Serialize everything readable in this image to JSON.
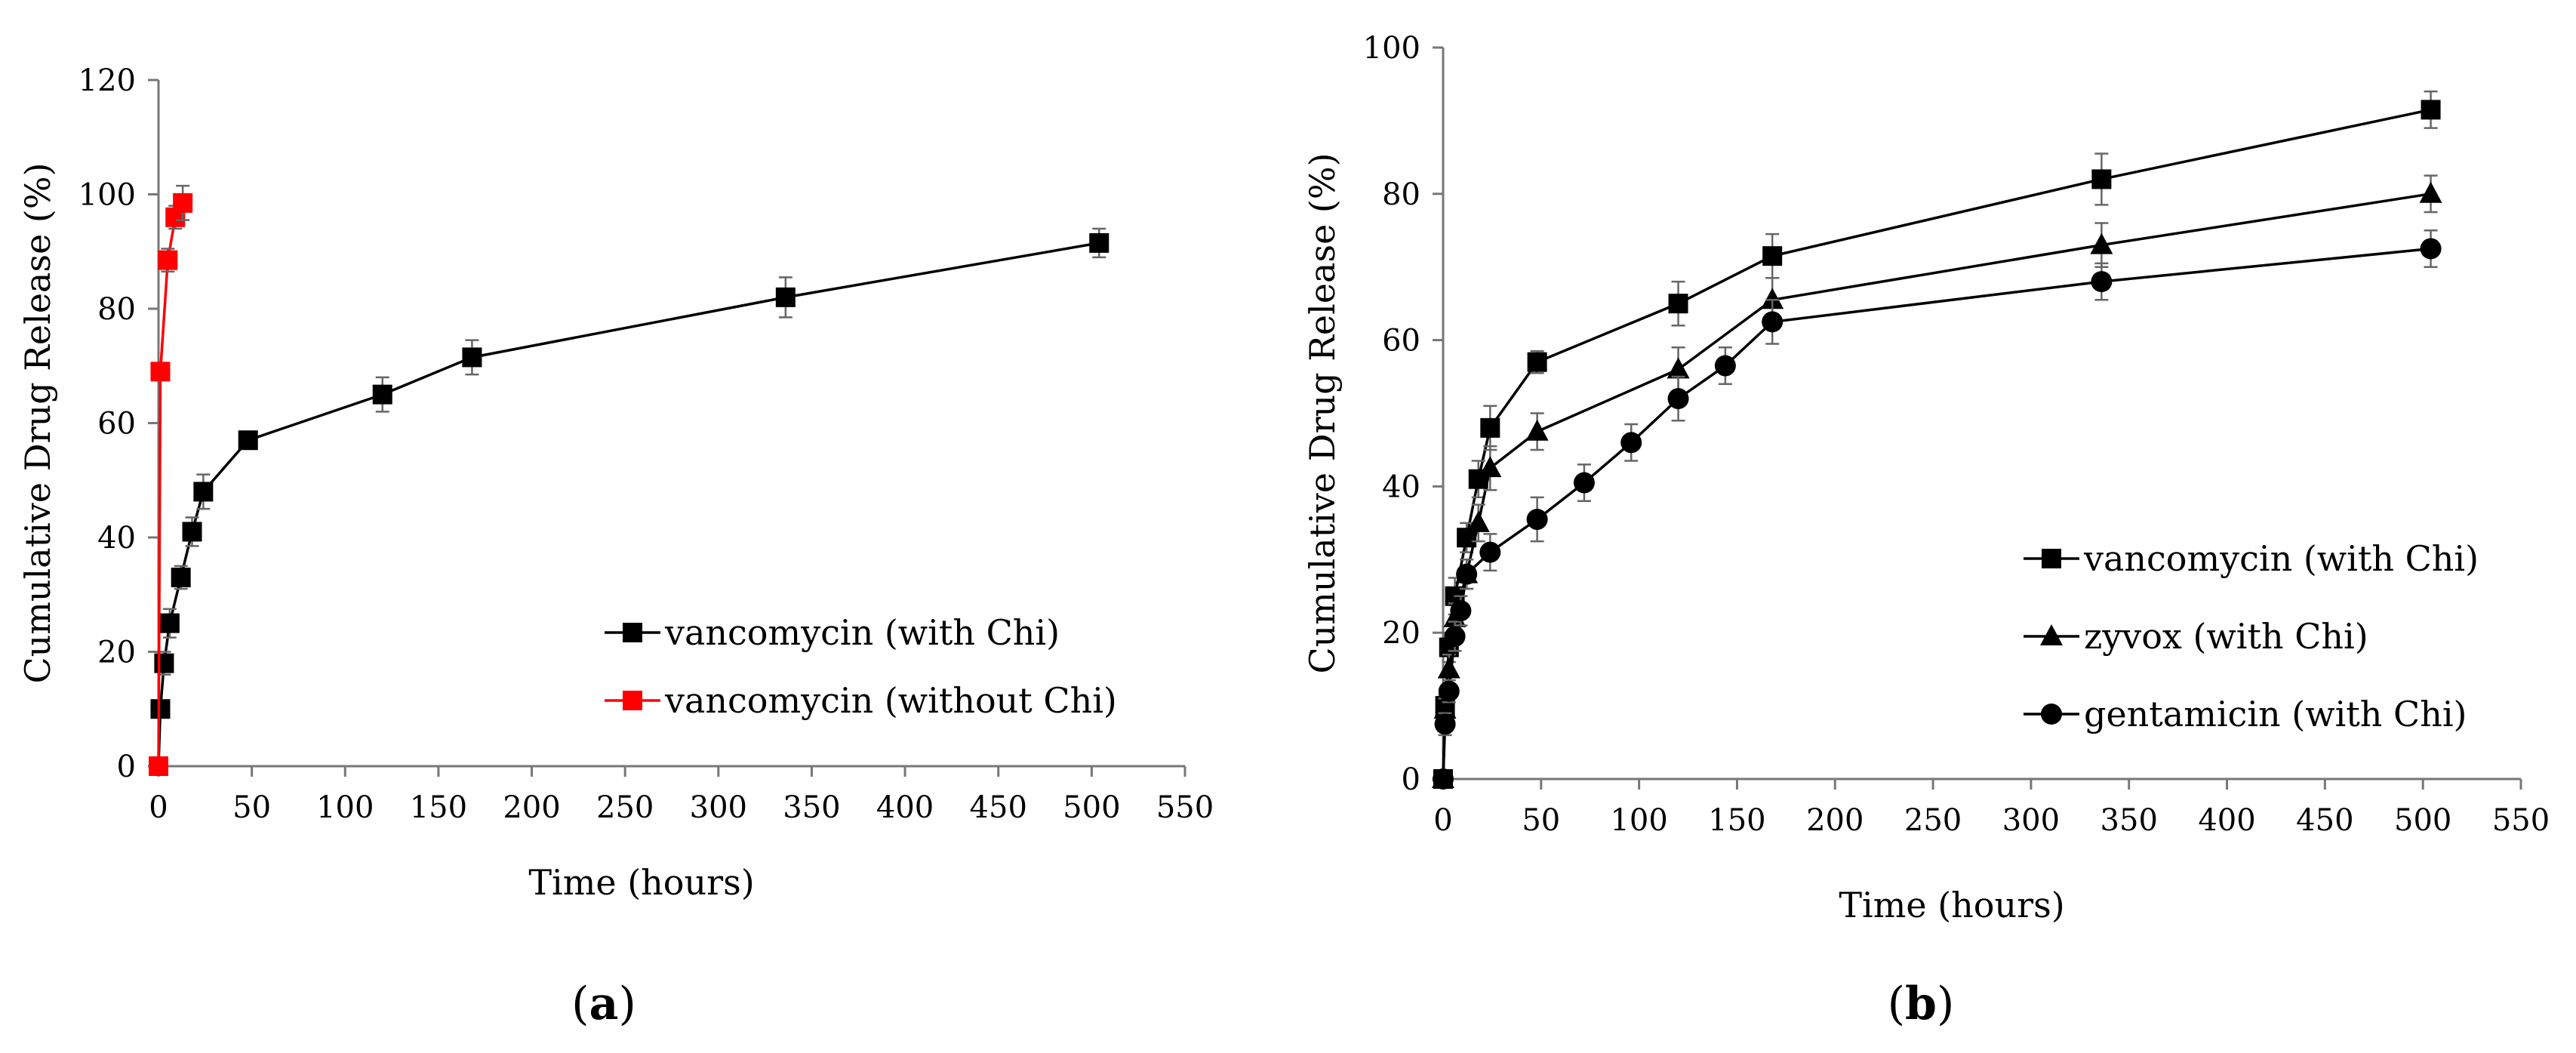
{
  "chart_data": [
    {
      "type": "line",
      "panel_label": "a",
      "xlabel": "Time (hours)",
      "ylabel": "Cumulative Drug Release (%)",
      "xlim": [
        0,
        550
      ],
      "ylim": [
        0,
        120
      ],
      "xticks": [
        0,
        50,
        100,
        150,
        200,
        250,
        300,
        350,
        400,
        450,
        500,
        550
      ],
      "yticks": [
        0,
        20,
        40,
        60,
        80,
        100,
        120
      ],
      "grid": false,
      "legend_position": "center-right",
      "series": [
        {
          "name": "vancomycin (with Chi)",
          "color": "#000000",
          "marker": "square",
          "x": [
            0,
            1,
            3,
            6,
            12,
            18,
            24,
            48,
            120,
            168,
            336,
            504
          ],
          "y": [
            0,
            10,
            18,
            25,
            33,
            41,
            48,
            57,
            65,
            71.5,
            82,
            91.5
          ],
          "error": [
            0,
            1.5,
            2,
            2.5,
            2,
            2.5,
            3,
            1.5,
            3,
            3,
            3.5,
            2.5
          ]
        },
        {
          "name": "vancomycin (without Chi)",
          "color": "#ff0000",
          "marker": "square",
          "x": [
            0,
            1,
            5,
            9,
            13
          ],
          "y": [
            0,
            69,
            88.5,
            96,
            98.5
          ],
          "error": [
            0,
            1.5,
            2,
            2,
            3
          ]
        }
      ]
    },
    {
      "type": "line",
      "panel_label": "b",
      "xlabel": "Time (hours)",
      "ylabel": "Cumulative Drug Release (%)",
      "xlim": [
        0,
        550
      ],
      "ylim": [
        0,
        100
      ],
      "xticks": [
        0,
        50,
        100,
        150,
        200,
        250,
        300,
        350,
        400,
        450,
        500,
        550
      ],
      "yticks": [
        0,
        20,
        40,
        60,
        80,
        100
      ],
      "grid": false,
      "legend_position": "bottom-right",
      "series": [
        {
          "name": "vancomycin (with Chi)",
          "color": "#000000",
          "marker": "square",
          "x": [
            0,
            1,
            3,
            6,
            12,
            18,
            24,
            48,
            120,
            168,
            336,
            504
          ],
          "y": [
            0,
            10,
            18,
            25,
            33,
            41,
            48,
            57,
            65,
            71.5,
            82,
            91.5
          ],
          "error": [
            0,
            1.5,
            2,
            2.5,
            2,
            2.5,
            3,
            1.5,
            3,
            3,
            3.5,
            2.5
          ]
        },
        {
          "name": "zyvox (with Chi)",
          "color": "#000000",
          "marker": "triangle",
          "x": [
            0,
            1,
            3,
            6,
            12,
            18,
            24,
            48,
            120,
            168,
            336,
            504
          ],
          "y": [
            0,
            9.5,
            15,
            22,
            28,
            35,
            42.5,
            47.5,
            56,
            65.5,
            73,
            80
          ],
          "error": [
            0,
            1.5,
            2,
            2,
            2,
            2.5,
            3,
            2.5,
            3,
            3,
            3,
            2.5
          ]
        },
        {
          "name": "gentamicin (with Chi)",
          "color": "#000000",
          "marker": "circle",
          "x": [
            0,
            1,
            3,
            6,
            9,
            12,
            24,
            48,
            72,
            96,
            120,
            144,
            168,
            336,
            504
          ],
          "y": [
            0,
            7.5,
            12,
            19.5,
            23,
            28,
            31,
            35.5,
            40.5,
            46,
            52,
            56.5,
            62.5,
            68,
            72.5
          ],
          "error": [
            0,
            1.5,
            1.5,
            2,
            2,
            2,
            2.5,
            3,
            2.5,
            2.5,
            3,
            2.5,
            3,
            2.5,
            2.5
          ]
        }
      ]
    }
  ]
}
